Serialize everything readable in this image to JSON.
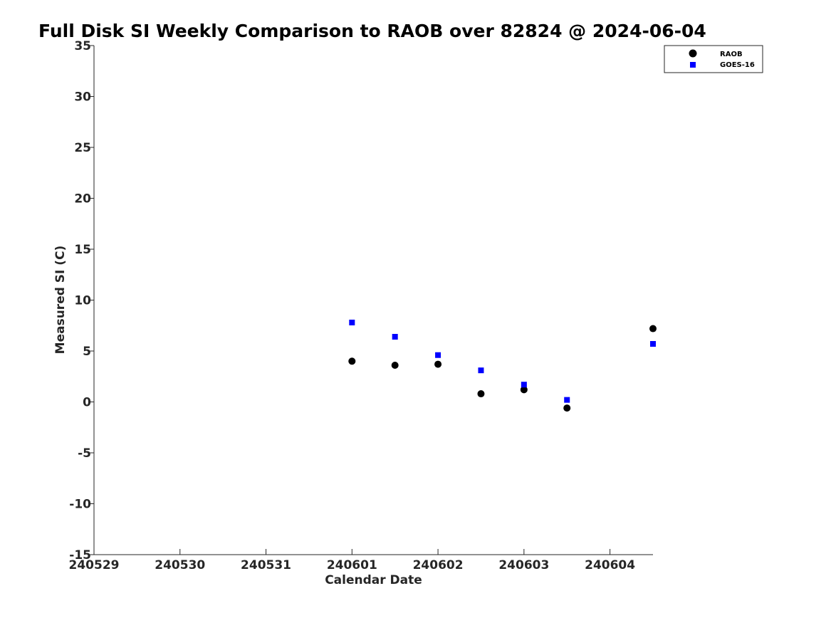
{
  "chart_data": {
    "type": "scatter",
    "title": "Full Disk SI Weekly Comparison to RAOB over 82824 @ 2024-06-04",
    "xlabel": "Calendar Date",
    "ylabel": "Measured SI (C)",
    "xlim": [
      "2024-05-29",
      "2024-06-04 12:00"
    ],
    "ylim": [
      -15,
      35
    ],
    "x_ticks": [
      {
        "x": "2024-05-29",
        "label": "240529"
      },
      {
        "x": "2024-05-30",
        "label": "240530"
      },
      {
        "x": "2024-05-31",
        "label": "240531"
      },
      {
        "x": "2024-06-01",
        "label": "240601"
      },
      {
        "x": "2024-06-02",
        "label": "240602"
      },
      {
        "x": "2024-06-03",
        "label": "240603"
      },
      {
        "x": "2024-06-04",
        "label": "240604"
      }
    ],
    "y_ticks": [
      35,
      30,
      25,
      20,
      15,
      10,
      5,
      0,
      -5,
      -10,
      -15
    ],
    "grid": false,
    "legend_position": "top-right",
    "series": [
      {
        "name": "RAOB",
        "marker": "circle",
        "color": "#000000",
        "points": [
          {
            "x": "2024-06-01 00:00",
            "y": 4.0
          },
          {
            "x": "2024-06-01 12:00",
            "y": 3.6
          },
          {
            "x": "2024-06-02 00:00",
            "y": 3.7
          },
          {
            "x": "2024-06-02 12:00",
            "y": 0.8
          },
          {
            "x": "2024-06-03 00:00",
            "y": 1.2
          },
          {
            "x": "2024-06-03 12:00",
            "y": -0.6
          },
          {
            "x": "2024-06-04 12:00",
            "y": 7.2
          }
        ]
      },
      {
        "name": "GOES-16",
        "marker": "square",
        "color": "#0000ff",
        "points": [
          {
            "x": "2024-06-01 00:00",
            "y": 7.8
          },
          {
            "x": "2024-06-01 12:00",
            "y": 6.4
          },
          {
            "x": "2024-06-02 00:00",
            "y": 4.6
          },
          {
            "x": "2024-06-02 12:00",
            "y": 3.1
          },
          {
            "x": "2024-06-03 00:00",
            "y": 1.7
          },
          {
            "x": "2024-06-03 12:00",
            "y": 0.2
          },
          {
            "x": "2024-06-04 12:00",
            "y": 5.7
          }
        ]
      }
    ]
  }
}
